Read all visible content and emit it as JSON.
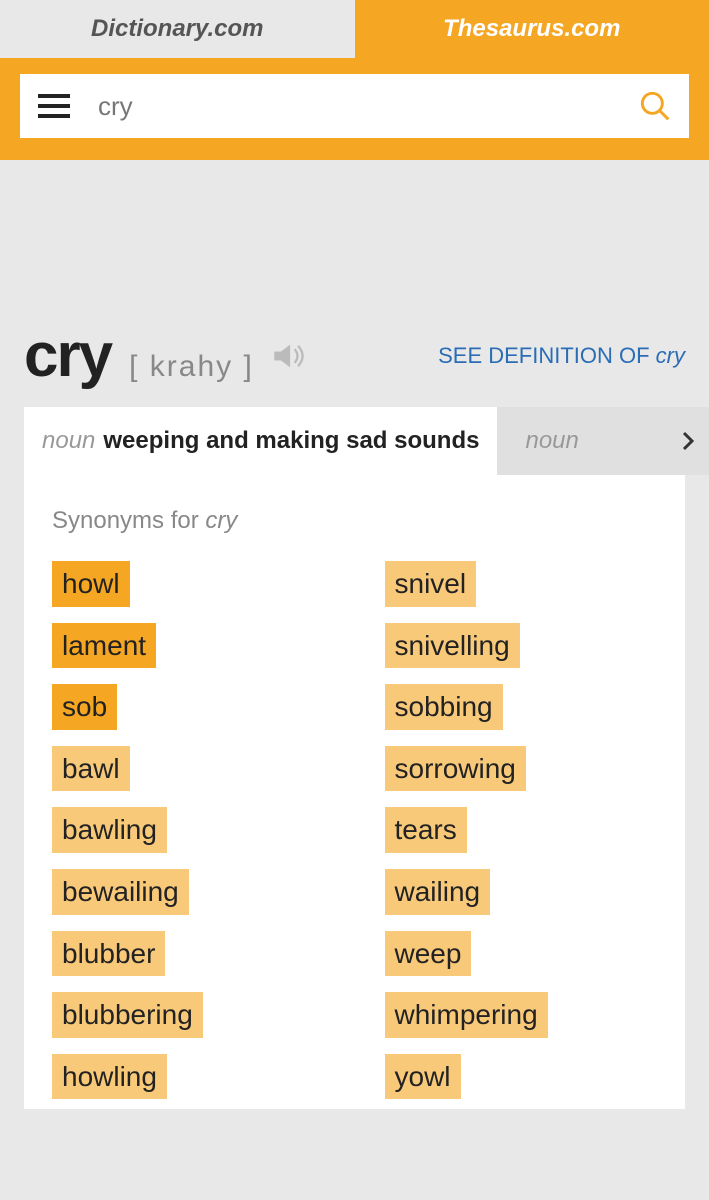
{
  "colors": {
    "accent": "#f5a623",
    "accent_light": "#f9c97a",
    "link": "#2a6db5",
    "muted": "#888888",
    "text": "#222222",
    "bg": "#e8e8e8"
  },
  "tabs": {
    "left": "Dictionary.com",
    "right": "Thesaurus.com",
    "active": "right"
  },
  "search": {
    "value": "cry"
  },
  "entry": {
    "word": "cry",
    "pronunciation": "[ krahy ]",
    "definition_link_prefix": "SEE DEFINITION OF ",
    "definition_link_word": "cry"
  },
  "senses": {
    "active": {
      "pos": "noun",
      "definition": "weeping and making sad sounds"
    },
    "next": {
      "pos": "noun"
    }
  },
  "synonyms": {
    "label_prefix": "Synonyms for ",
    "label_word": "cry",
    "left": [
      {
        "text": "howl",
        "tier": 0
      },
      {
        "text": "lament",
        "tier": 0
      },
      {
        "text": "sob",
        "tier": 0
      },
      {
        "text": "bawl",
        "tier": 1
      },
      {
        "text": "bawling",
        "tier": 1
      },
      {
        "text": "bewailing",
        "tier": 1
      },
      {
        "text": "blubber",
        "tier": 1
      },
      {
        "text": "blubbering",
        "tier": 1
      },
      {
        "text": "howling",
        "tier": 1
      }
    ],
    "right": [
      {
        "text": "snivel",
        "tier": 1
      },
      {
        "text": "snivelling",
        "tier": 1
      },
      {
        "text": "sobbing",
        "tier": 1
      },
      {
        "text": "sorrowing",
        "tier": 1
      },
      {
        "text": "tears",
        "tier": 1
      },
      {
        "text": "wailing",
        "tier": 1
      },
      {
        "text": "weep",
        "tier": 1
      },
      {
        "text": "whimpering",
        "tier": 1
      },
      {
        "text": "yowl",
        "tier": 1
      }
    ]
  }
}
